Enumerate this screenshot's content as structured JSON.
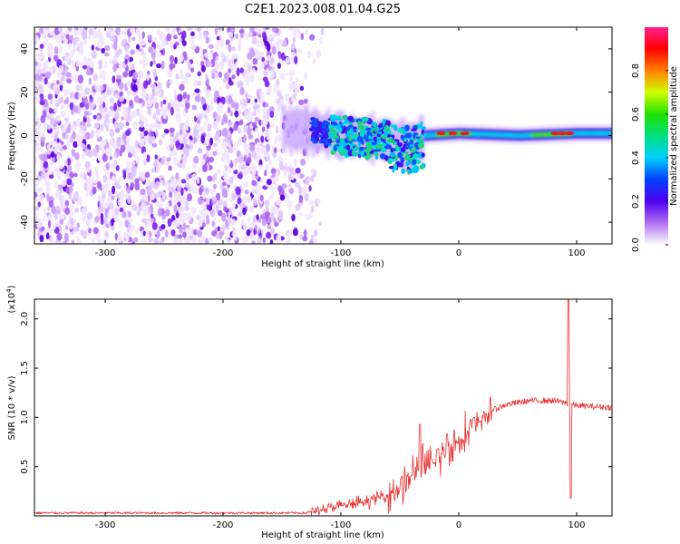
{
  "title": "C2E1.2023.008.01.04.G25",
  "chart_data": [
    {
      "id": "spectrogram",
      "type": "heatmap",
      "xlabel": "Height of straight line (km)",
      "ylabel": "Frequency (Hz)",
      "xlim": [
        -360,
        130
      ],
      "ylim": [
        -50,
        50
      ],
      "xticks": [
        -300,
        -200,
        -100,
        0,
        100
      ],
      "xtick_labels": [
        "-300",
        "-200",
        "-100",
        "0",
        "100"
      ],
      "yticks": [
        -40,
        -20,
        0,
        20,
        40
      ],
      "ytick_labels": [
        "-40",
        "-20",
        "0",
        "20",
        "40"
      ],
      "colorbar": {
        "label": "Normalized spectral amplitude",
        "range": [
          0,
          1
        ],
        "ticks": [
          0,
          0.2,
          0.4,
          0.6,
          0.8
        ],
        "tick_labels": [
          "0.0",
          "0.2",
          "0.4",
          "0.6",
          "0.8"
        ],
        "colormap": "rainbow-white-purple-blue-cyan-green-yellow-red-magenta"
      },
      "regions": [
        {
          "x": [
            -360,
            -125
          ],
          "freq": [
            -50,
            50
          ],
          "description": "noise"
        },
        {
          "x": [
            -125,
            -30
          ],
          "freq": [
            -18,
            8
          ],
          "description": "broad signal"
        },
        {
          "x": [
            -30,
            130
          ],
          "freq": [
            -2,
            3
          ],
          "description": "narrow tone"
        }
      ],
      "line_center_hz": [
        {
          "x": -140,
          "y": 3
        },
        {
          "x": -100,
          "y": 0
        },
        {
          "x": -60,
          "y": -2
        },
        {
          "x": -40,
          "y": -6
        },
        {
          "x": -30,
          "y": 0
        },
        {
          "x": 0,
          "y": 1
        },
        {
          "x": 50,
          "y": 0
        },
        {
          "x": 100,
          "y": 1
        },
        {
          "x": 130,
          "y": 1
        }
      ]
    },
    {
      "id": "snr",
      "type": "line",
      "xlabel": "Height of straight line (km)",
      "ylabel": "SNR (10 * v/v)",
      "multiplier": "(x10",
      "multiplier_exp": "4",
      "multiplier_close": ")",
      "xlim": [
        -360,
        130
      ],
      "ylim": [
        0,
        2.2
      ],
      "xticks": [
        -300,
        -200,
        -100,
        0,
        100
      ],
      "xtick_labels": [
        "-300",
        "-200",
        "-100",
        "0",
        "100"
      ],
      "yticks": [
        0.5,
        1.0,
        1.5,
        2.0
      ],
      "ytick_labels": [
        "0.5",
        "1.0",
        "1.5",
        "2.0"
      ],
      "color": "#e83030",
      "envelope": [
        {
          "x": -360,
          "y": 0.03
        },
        {
          "x": -130,
          "y": 0.03
        },
        {
          "x": -120,
          "y": 0.06
        },
        {
          "x": -100,
          "y": 0.1
        },
        {
          "x": -80,
          "y": 0.14
        },
        {
          "x": -60,
          "y": 0.22
        },
        {
          "x": -50,
          "y": 0.3
        },
        {
          "x": -40,
          "y": 0.4
        },
        {
          "x": -32,
          "y": 0.55
        },
        {
          "x": -25,
          "y": 0.48
        },
        {
          "x": -15,
          "y": 0.62
        },
        {
          "x": -5,
          "y": 0.72
        },
        {
          "x": 5,
          "y": 0.82
        },
        {
          "x": 15,
          "y": 0.92
        },
        {
          "x": 25,
          "y": 1.05
        },
        {
          "x": 40,
          "y": 1.13
        },
        {
          "x": 60,
          "y": 1.17
        },
        {
          "x": 80,
          "y": 1.17
        },
        {
          "x": 90,
          "y": 1.15
        },
        {
          "x": 100,
          "y": 1.12
        },
        {
          "x": 130,
          "y": 1.1
        }
      ],
      "spikes": [
        {
          "x": -33,
          "y": 0.93
        },
        {
          "x": -18,
          "y": 0.68
        },
        {
          "x": -10,
          "y": 0.83
        },
        {
          "x": 10,
          "y": 0.98
        },
        {
          "x": 13,
          "y": 1.0
        },
        {
          "x": 93,
          "y": 2.2
        },
        {
          "x": 95,
          "y": 0.18
        }
      ]
    }
  ]
}
